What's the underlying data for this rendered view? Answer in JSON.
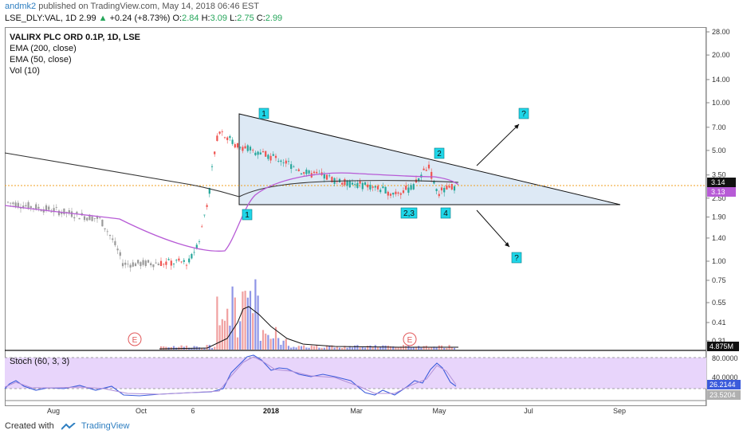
{
  "header": {
    "author": "andmk2",
    "published": "published on TradingView.com, May 14, 2018 06:46 EST",
    "symbol": "LSE_DLY:VAL, 1D",
    "last": "2.99",
    "change": "+0.24 (+8.73%)",
    "o_label": "O:",
    "o_val": "2.84",
    "h_label": "H:",
    "h_val": "3.09",
    "l_label": "L:",
    "l_val": "2.75",
    "c_label": "C:",
    "c_val": "2.99"
  },
  "legend": {
    "title": "VALIRX PLC ORD 0.1P, 1D, LSE",
    "ema200": "EMA (200, close)",
    "ema50": "EMA (50, close)",
    "vol": "Vol (10)"
  },
  "stoch": {
    "label": "Stoch (60, 3, 3)"
  },
  "footer": {
    "created": "Created with",
    "brand": "TradingView"
  },
  "colors": {
    "up": "#26a69a",
    "down": "#ef5350",
    "triangle_fill": "#dde9f5",
    "ema200": "#333333",
    "ema50": "#b75bd6",
    "stoch_fill": "#e8d5fb",
    "stoch_k": "#3b5bdb",
    "stoch_d": "#b08fd8",
    "current_price": "#f0a020",
    "badge": "#1fd6e8"
  },
  "chart_data": {
    "type": "candlestick",
    "title": "VALIRX PLC ORD 0.1P, 1D, LSE",
    "y_scale": "log",
    "y_ticks": [
      "28.00",
      "20.00",
      "14.00",
      "10.00",
      "7.00",
      "5.00",
      "3.50",
      "2.50",
      "1.90",
      "1.40",
      "1.00",
      "0.75",
      "0.55",
      "0.41",
      "0.31"
    ],
    "y_ticks_values": [
      28,
      20,
      14,
      10,
      7,
      5,
      3.5,
      2.5,
      1.9,
      1.4,
      1.0,
      0.75,
      0.55,
      0.41,
      0.31
    ],
    "x_ticks": [
      "Aug",
      "Oct",
      "6",
      "2018",
      "Mar",
      "May",
      "Jul",
      "Sep"
    ],
    "price_labels": [
      "3.14",
      "3.13"
    ],
    "volume_label": "4.875M",
    "stoch_ticks": [
      "80.0000",
      "40.0000"
    ],
    "stoch_values": [
      "26.2144",
      "23.5204"
    ],
    "close_series": [
      {
        "date": "2017-07-15",
        "value": 2.35
      },
      {
        "date": "2017-08-01",
        "value": 2.2
      },
      {
        "date": "2017-08-15",
        "value": 2.1
      },
      {
        "date": "2017-09-01",
        "value": 1.95
      },
      {
        "date": "2017-09-15",
        "value": 1.85
      },
      {
        "date": "2017-10-01",
        "value": 0.96
      },
      {
        "date": "2017-10-15",
        "value": 0.97
      },
      {
        "date": "2017-11-01",
        "value": 0.98
      },
      {
        "date": "2017-11-15",
        "value": 0.99
      },
      {
        "date": "2017-11-22",
        "value": 1.4
      },
      {
        "date": "2017-11-28",
        "value": 2.6
      },
      {
        "date": "2017-12-05",
        "value": 6.8
      },
      {
        "date": "2017-12-15",
        "value": 5.5
      },
      {
        "date": "2018-01-01",
        "value": 4.8
      },
      {
        "date": "2018-01-15",
        "value": 4.4
      },
      {
        "date": "2018-02-01",
        "value": 3.6
      },
      {
        "date": "2018-02-15",
        "value": 3.4
      },
      {
        "date": "2018-03-01",
        "value": 3.1
      },
      {
        "date": "2018-03-15",
        "value": 3.0
      },
      {
        "date": "2018-04-01",
        "value": 2.7
      },
      {
        "date": "2018-04-15",
        "value": 2.9
      },
      {
        "date": "2018-04-25",
        "value": 4.0
      },
      {
        "date": "2018-05-01",
        "value": 2.7
      },
      {
        "date": "2018-05-14",
        "value": 2.99
      }
    ],
    "annotations": {
      "wave_labels": [
        "1",
        "1",
        "2",
        "2,3",
        "4"
      ],
      "question_marks": [
        "?",
        "?"
      ],
      "earnings_markers": [
        "E",
        "E"
      ]
    }
  }
}
